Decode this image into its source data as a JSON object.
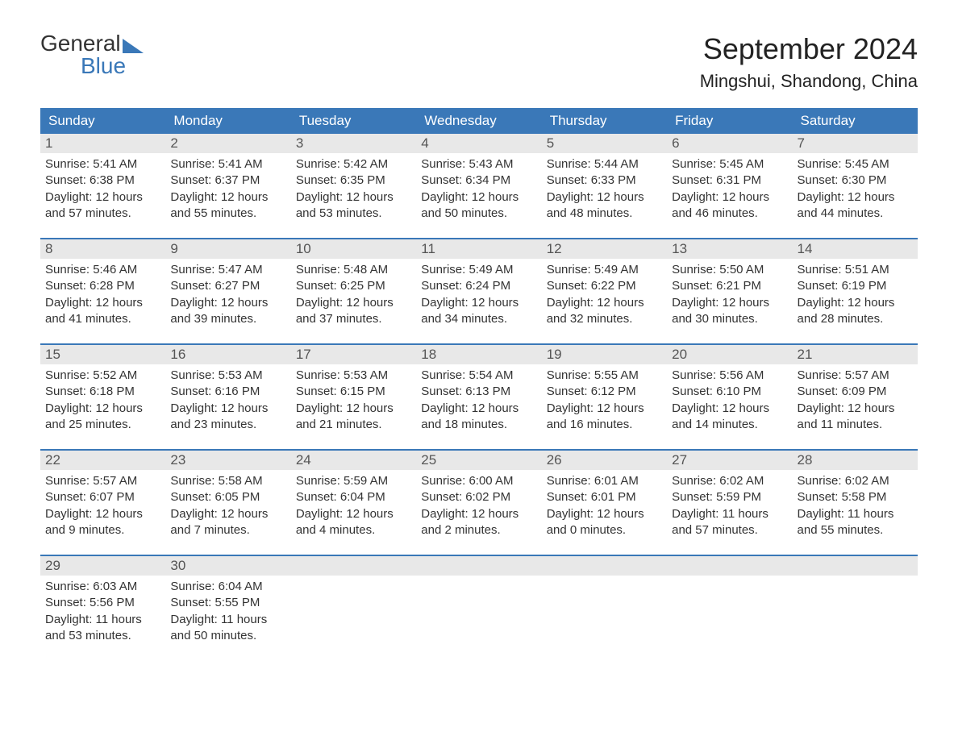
{
  "logo": {
    "line1": "General",
    "line2": "Blue"
  },
  "title": "September 2024",
  "location": "Mingshui, Shandong, China",
  "colors": {
    "header_bg": "#3a78b8",
    "header_text": "#ffffff",
    "daynum_bg": "#e8e8e8",
    "daynum_text": "#555555",
    "body_text": "#333333",
    "divider": "#3a78b8",
    "page_bg": "#ffffff",
    "logo_blue": "#3a78b8",
    "logo_dark": "#333333"
  },
  "fonts": {
    "family": "Arial",
    "title_size": 36,
    "location_size": 22,
    "dayheader_size": 17,
    "daynum_size": 17,
    "body_size": 15
  },
  "day_headers": [
    "Sunday",
    "Monday",
    "Tuesday",
    "Wednesday",
    "Thursday",
    "Friday",
    "Saturday"
  ],
  "weeks": [
    [
      {
        "n": "1",
        "sr": "Sunrise: 5:41 AM",
        "ss": "Sunset: 6:38 PM",
        "d1": "Daylight: 12 hours",
        "d2": "and 57 minutes."
      },
      {
        "n": "2",
        "sr": "Sunrise: 5:41 AM",
        "ss": "Sunset: 6:37 PM",
        "d1": "Daylight: 12 hours",
        "d2": "and 55 minutes."
      },
      {
        "n": "3",
        "sr": "Sunrise: 5:42 AM",
        "ss": "Sunset: 6:35 PM",
        "d1": "Daylight: 12 hours",
        "d2": "and 53 minutes."
      },
      {
        "n": "4",
        "sr": "Sunrise: 5:43 AM",
        "ss": "Sunset: 6:34 PM",
        "d1": "Daylight: 12 hours",
        "d2": "and 50 minutes."
      },
      {
        "n": "5",
        "sr": "Sunrise: 5:44 AM",
        "ss": "Sunset: 6:33 PM",
        "d1": "Daylight: 12 hours",
        "d2": "and 48 minutes."
      },
      {
        "n": "6",
        "sr": "Sunrise: 5:45 AM",
        "ss": "Sunset: 6:31 PM",
        "d1": "Daylight: 12 hours",
        "d2": "and 46 minutes."
      },
      {
        "n": "7",
        "sr": "Sunrise: 5:45 AM",
        "ss": "Sunset: 6:30 PM",
        "d1": "Daylight: 12 hours",
        "d2": "and 44 minutes."
      }
    ],
    [
      {
        "n": "8",
        "sr": "Sunrise: 5:46 AM",
        "ss": "Sunset: 6:28 PM",
        "d1": "Daylight: 12 hours",
        "d2": "and 41 minutes."
      },
      {
        "n": "9",
        "sr": "Sunrise: 5:47 AM",
        "ss": "Sunset: 6:27 PM",
        "d1": "Daylight: 12 hours",
        "d2": "and 39 minutes."
      },
      {
        "n": "10",
        "sr": "Sunrise: 5:48 AM",
        "ss": "Sunset: 6:25 PM",
        "d1": "Daylight: 12 hours",
        "d2": "and 37 minutes."
      },
      {
        "n": "11",
        "sr": "Sunrise: 5:49 AM",
        "ss": "Sunset: 6:24 PM",
        "d1": "Daylight: 12 hours",
        "d2": "and 34 minutes."
      },
      {
        "n": "12",
        "sr": "Sunrise: 5:49 AM",
        "ss": "Sunset: 6:22 PM",
        "d1": "Daylight: 12 hours",
        "d2": "and 32 minutes."
      },
      {
        "n": "13",
        "sr": "Sunrise: 5:50 AM",
        "ss": "Sunset: 6:21 PM",
        "d1": "Daylight: 12 hours",
        "d2": "and 30 minutes."
      },
      {
        "n": "14",
        "sr": "Sunrise: 5:51 AM",
        "ss": "Sunset: 6:19 PM",
        "d1": "Daylight: 12 hours",
        "d2": "and 28 minutes."
      }
    ],
    [
      {
        "n": "15",
        "sr": "Sunrise: 5:52 AM",
        "ss": "Sunset: 6:18 PM",
        "d1": "Daylight: 12 hours",
        "d2": "and 25 minutes."
      },
      {
        "n": "16",
        "sr": "Sunrise: 5:53 AM",
        "ss": "Sunset: 6:16 PM",
        "d1": "Daylight: 12 hours",
        "d2": "and 23 minutes."
      },
      {
        "n": "17",
        "sr": "Sunrise: 5:53 AM",
        "ss": "Sunset: 6:15 PM",
        "d1": "Daylight: 12 hours",
        "d2": "and 21 minutes."
      },
      {
        "n": "18",
        "sr": "Sunrise: 5:54 AM",
        "ss": "Sunset: 6:13 PM",
        "d1": "Daylight: 12 hours",
        "d2": "and 18 minutes."
      },
      {
        "n": "19",
        "sr": "Sunrise: 5:55 AM",
        "ss": "Sunset: 6:12 PM",
        "d1": "Daylight: 12 hours",
        "d2": "and 16 minutes."
      },
      {
        "n": "20",
        "sr": "Sunrise: 5:56 AM",
        "ss": "Sunset: 6:10 PM",
        "d1": "Daylight: 12 hours",
        "d2": "and 14 minutes."
      },
      {
        "n": "21",
        "sr": "Sunrise: 5:57 AM",
        "ss": "Sunset: 6:09 PM",
        "d1": "Daylight: 12 hours",
        "d2": "and 11 minutes."
      }
    ],
    [
      {
        "n": "22",
        "sr": "Sunrise: 5:57 AM",
        "ss": "Sunset: 6:07 PM",
        "d1": "Daylight: 12 hours",
        "d2": "and 9 minutes."
      },
      {
        "n": "23",
        "sr": "Sunrise: 5:58 AM",
        "ss": "Sunset: 6:05 PM",
        "d1": "Daylight: 12 hours",
        "d2": "and 7 minutes."
      },
      {
        "n": "24",
        "sr": "Sunrise: 5:59 AM",
        "ss": "Sunset: 6:04 PM",
        "d1": "Daylight: 12 hours",
        "d2": "and 4 minutes."
      },
      {
        "n": "25",
        "sr": "Sunrise: 6:00 AM",
        "ss": "Sunset: 6:02 PM",
        "d1": "Daylight: 12 hours",
        "d2": "and 2 minutes."
      },
      {
        "n": "26",
        "sr": "Sunrise: 6:01 AM",
        "ss": "Sunset: 6:01 PM",
        "d1": "Daylight: 12 hours",
        "d2": "and 0 minutes."
      },
      {
        "n": "27",
        "sr": "Sunrise: 6:02 AM",
        "ss": "Sunset: 5:59 PM",
        "d1": "Daylight: 11 hours",
        "d2": "and 57 minutes."
      },
      {
        "n": "28",
        "sr": "Sunrise: 6:02 AM",
        "ss": "Sunset: 5:58 PM",
        "d1": "Daylight: 11 hours",
        "d2": "and 55 minutes."
      }
    ],
    [
      {
        "n": "29",
        "sr": "Sunrise: 6:03 AM",
        "ss": "Sunset: 5:56 PM",
        "d1": "Daylight: 11 hours",
        "d2": "and 53 minutes."
      },
      {
        "n": "30",
        "sr": "Sunrise: 6:04 AM",
        "ss": "Sunset: 5:55 PM",
        "d1": "Daylight: 11 hours",
        "d2": "and 50 minutes."
      },
      {
        "empty": true
      },
      {
        "empty": true
      },
      {
        "empty": true
      },
      {
        "empty": true
      },
      {
        "empty": true
      }
    ]
  ]
}
